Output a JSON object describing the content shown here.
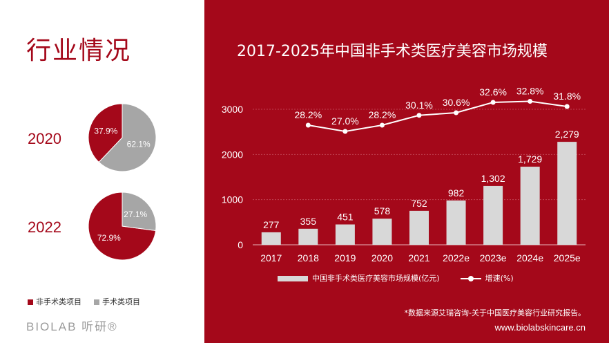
{
  "left_panel": {
    "section_title": "行业情况",
    "pies": [
      {
        "year": "2020",
        "non_surgical": 37.9,
        "surgical": 62.1,
        "non_surgical_label": "37.9%",
        "surgical_label": "62.1%"
      },
      {
        "year": "2022",
        "non_surgical": 72.9,
        "surgical": 27.1,
        "non_surgical_label": "72.9%",
        "surgical_label": "27.1%"
      }
    ],
    "legend": {
      "non_surgical": "非手术类项目",
      "surgical": "手术类项目"
    },
    "brand": "BIOLAB 听研®",
    "colors": {
      "non_surgical": "#a4081a",
      "surgical": "#a6a6a6"
    }
  },
  "chart_data": [
    {
      "type": "pie",
      "slices": [
        {
          "label": "非手术类项目",
          "value": 37.9
        },
        {
          "label": "手术类项目",
          "value": 62.1
        }
      ],
      "caption": "2020"
    },
    {
      "type": "pie",
      "slices": [
        {
          "label": "非手术类项目",
          "value": 72.9
        },
        {
          "label": "手术类项目",
          "value": 27.1
        }
      ],
      "caption": "2022"
    },
    {
      "type": "bar",
      "title": "2017-2025年中国非手术类医疗美容市场规模",
      "categories": [
        "2017",
        "2018",
        "2019",
        "2020",
        "2021",
        "2022e",
        "2023e",
        "2024e",
        "2025e"
      ],
      "series": [
        {
          "name": "中国非手术类医疗美容市场规模(亿元)",
          "values": [
            277,
            355,
            451,
            578,
            752,
            982,
            1302,
            1729,
            2279
          ],
          "labels": [
            "277",
            "355",
            "451",
            "578",
            "752",
            "982",
            "1,302",
            "1,729",
            "2,279"
          ]
        },
        {
          "name": "增速(%)",
          "type": "line",
          "values": [
            null,
            28.2,
            27.0,
            28.2,
            30.1,
            30.6,
            32.6,
            32.8,
            31.8
          ],
          "labels": [
            "",
            "28.2%",
            "27.0%",
            "28.2%",
            "30.1%",
            "30.6%",
            "32.6%",
            "32.8%",
            "31.8%"
          ]
        }
      ],
      "y_ticks": [
        "0",
        "1000",
        "2000",
        "3000"
      ],
      "ylim": [
        0,
        3000
      ],
      "grid": true,
      "legend_position": "bottom",
      "colors": {
        "bar": "#d8d8d8",
        "line": "#ffffff",
        "background": "#a4081a"
      }
    }
  ],
  "footer": {
    "source": "*数据来源艾瑞咨询-关于中国医疗美容行业研究报告。",
    "url": "www.biolabskincare.cn"
  }
}
